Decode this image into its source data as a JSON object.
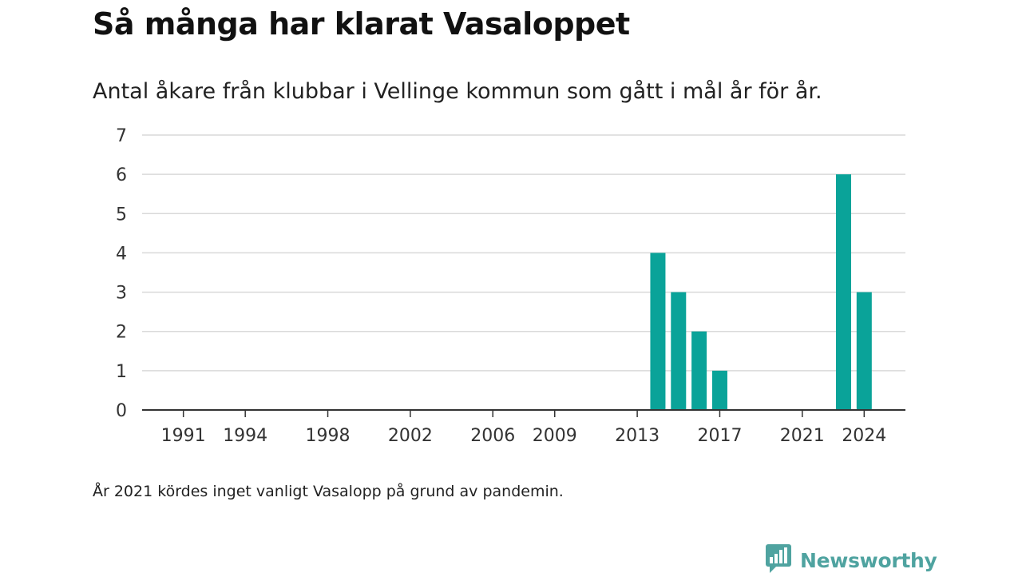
{
  "header": {
    "title": "Så många har klarat Vasaloppet",
    "subtitle": "Antal åkare från klubbar i Vellinge kommun som gått i mål år för år."
  },
  "footer": {
    "note": "År 2021 kördes inget vanligt Vasalopp på grund av pandemin.",
    "brand": "Newsworthy",
    "brand_icon": "newsworthy-logo-icon"
  },
  "colors": {
    "bar": "#0aa399",
    "grid": "#d9d9d9",
    "axis": "#333333",
    "brand": "#4fa3a0"
  },
  "chart_data": {
    "type": "bar",
    "title": "Så många har klarat Vasaloppet",
    "subtitle": "Antal åkare från klubbar i Vellinge kommun som gått i mål år för år.",
    "xlabel": "",
    "ylabel": "",
    "xlim": [
      1989,
      2026
    ],
    "ylim": [
      0,
      7
    ],
    "yticks": [
      0,
      1,
      2,
      3,
      4,
      5,
      6,
      7
    ],
    "xticks": [
      1991,
      1994,
      1998,
      2002,
      2006,
      2009,
      2013,
      2017,
      2021,
      2024
    ],
    "x": [
      2014,
      2015,
      2016,
      2017,
      2023,
      2024
    ],
    "values": [
      4,
      3,
      2,
      1,
      6,
      3
    ],
    "grid": true,
    "legend": "none"
  }
}
